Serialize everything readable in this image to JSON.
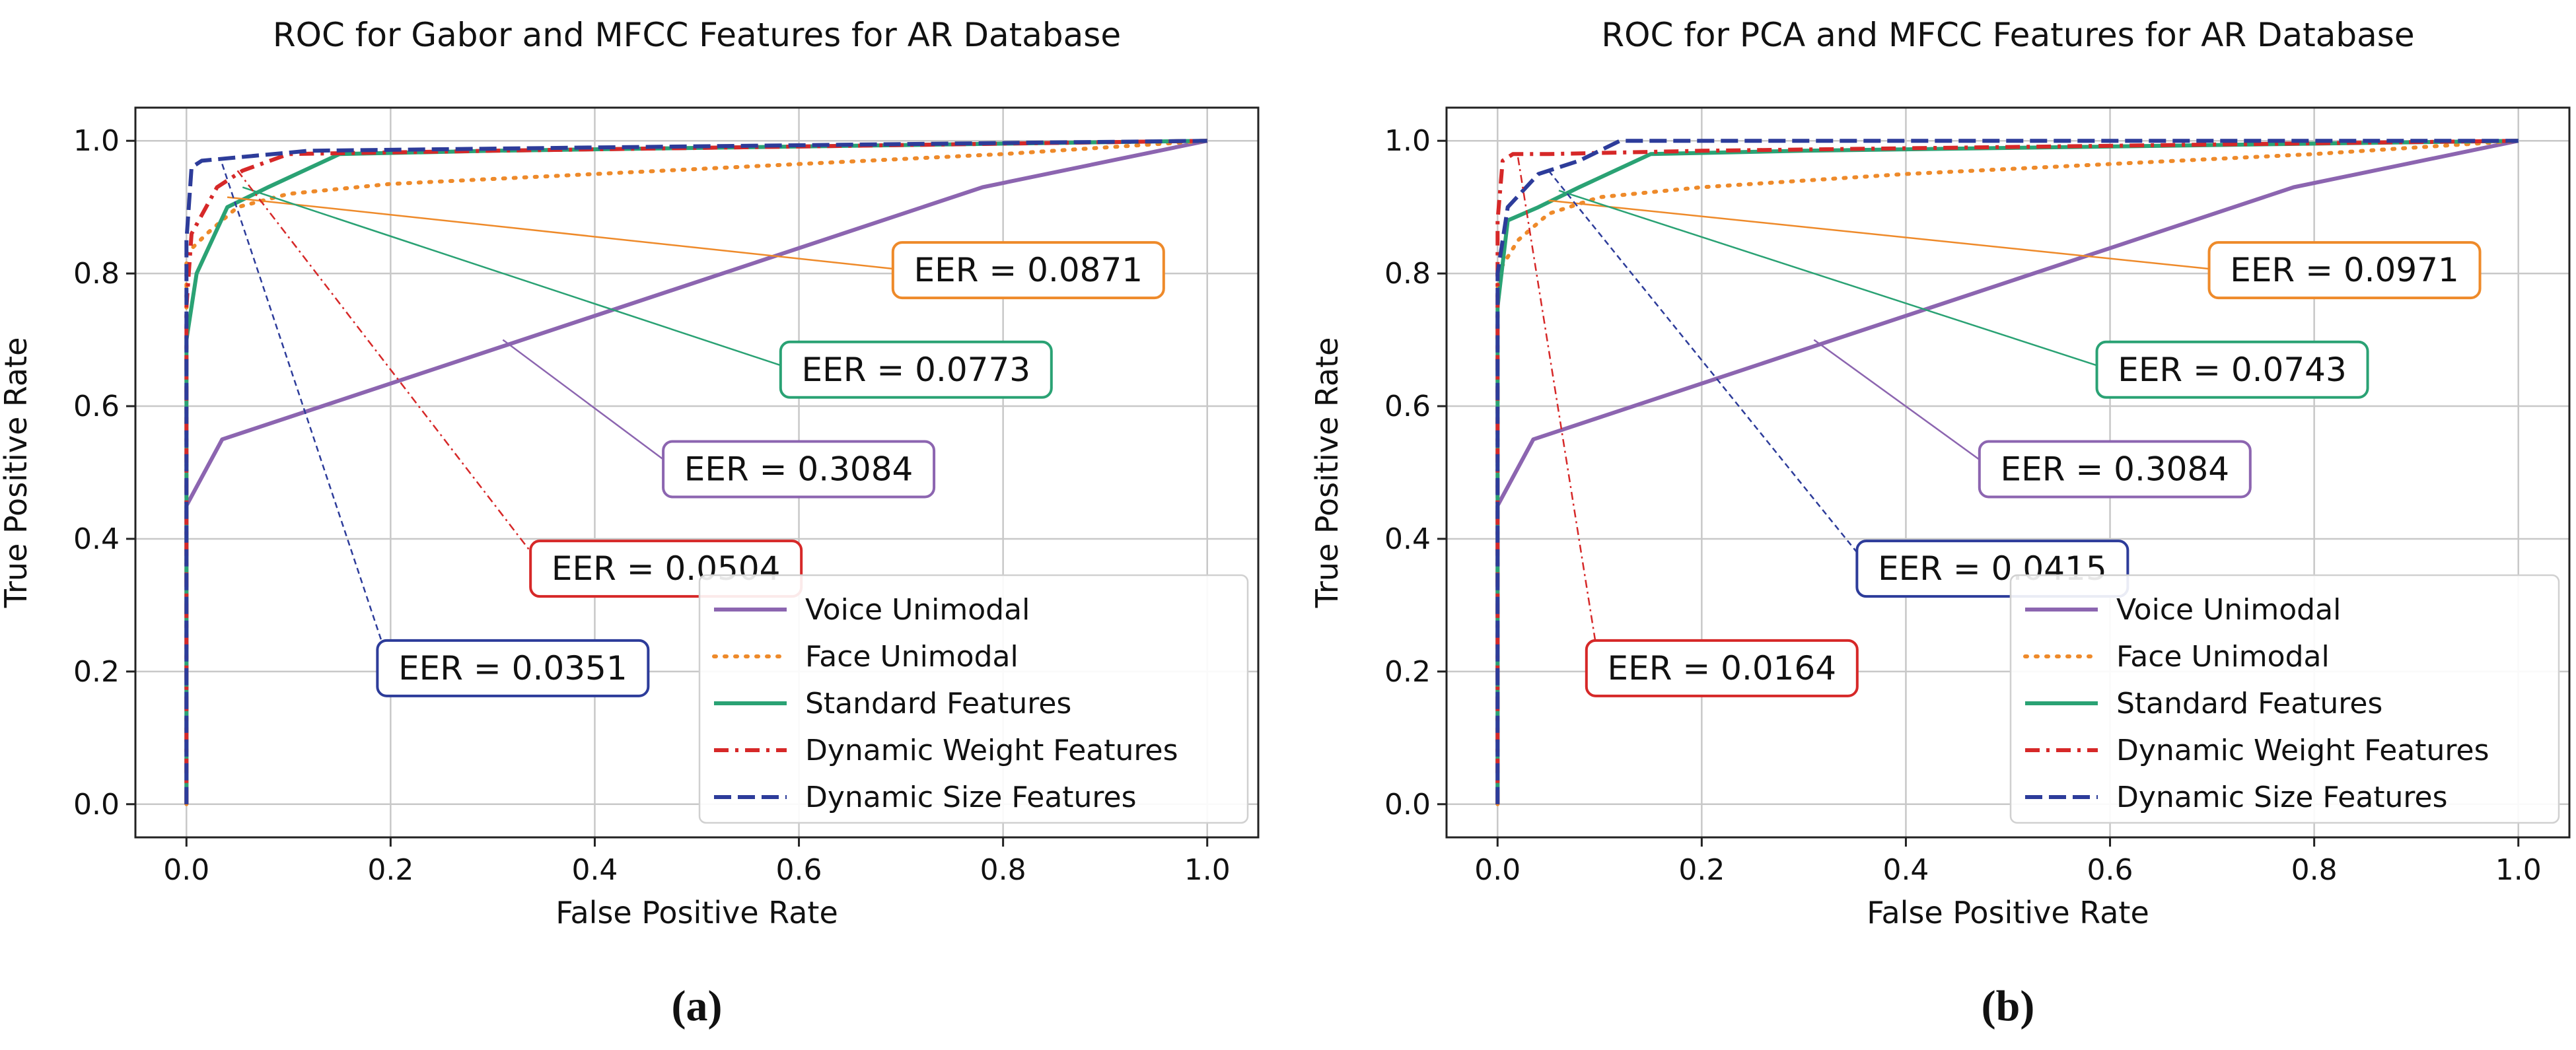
{
  "colors": {
    "voice": "#8c65b0",
    "face": "#ee8a2a",
    "standard": "#2aa274",
    "weight": "#d62828",
    "size": "#2d3c9a",
    "grid": "#c8c8c8",
    "axis": "#222222"
  },
  "chart_data": [
    {
      "type": "line",
      "panel_label": "(a)",
      "title": "ROC for Gabor and MFCC Features for AR Database",
      "xlabel": "False Positive Rate",
      "ylabel": "True Positive Rate",
      "xlim": [
        -0.05,
        1.05
      ],
      "ylim": [
        -0.05,
        1.05
      ],
      "xticks": [
        "0.0",
        "0.2",
        "0.4",
        "0.6",
        "0.8",
        "1.0"
      ],
      "yticks": [
        "0.0",
        "0.2",
        "0.4",
        "0.6",
        "0.8",
        "1.0"
      ],
      "grid": true,
      "legend_position": "lower-right",
      "series": [
        {
          "name": "Voice Unimodal",
          "key": "voice",
          "dash": "solid",
          "x": [
            0.0,
            0.0,
            0.035,
            0.78,
            1.0
          ],
          "y": [
            0.0,
            0.45,
            0.55,
            0.93,
            1.0
          ]
        },
        {
          "name": "Face Unimodal",
          "key": "face",
          "dash": "dot",
          "x": [
            0.0,
            0.0,
            0.02,
            0.05,
            0.1,
            0.2,
            0.4,
            0.6,
            0.8,
            0.95,
            1.0
          ],
          "y": [
            0.0,
            0.83,
            0.86,
            0.9,
            0.92,
            0.935,
            0.95,
            0.965,
            0.98,
            0.995,
            1.0
          ]
        },
        {
          "name": "Standard Features",
          "key": "standard",
          "dash": "solid",
          "x": [
            0.0,
            0.0,
            0.01,
            0.04,
            0.08,
            0.15,
            0.3,
            1.0
          ],
          "y": [
            0.0,
            0.7,
            0.8,
            0.9,
            0.93,
            0.98,
            0.985,
            1.0
          ]
        },
        {
          "name": "Dynamic Weight Features",
          "key": "weight",
          "dash": "dashdot",
          "x": [
            0.0,
            0.0,
            0.005,
            0.03,
            0.055,
            0.1,
            0.3,
            1.0
          ],
          "y": [
            0.0,
            0.75,
            0.86,
            0.93,
            0.955,
            0.98,
            0.985,
            1.0
          ]
        },
        {
          "name": "Dynamic Size Features",
          "key": "size",
          "dash": "dash",
          "x": [
            0.0,
            0.0,
            0.005,
            0.015,
            0.05,
            0.12,
            0.4,
            1.0
          ],
          "y": [
            0.0,
            0.85,
            0.96,
            0.97,
            0.975,
            0.985,
            0.99,
            1.0
          ]
        }
      ],
      "annotations": [
        {
          "key": "face",
          "text": "EER = 0.0871",
          "point": [
            0.04,
            0.915
          ],
          "label_at": [
            0.705,
            0.805
          ]
        },
        {
          "key": "standard",
          "text": "EER = 0.0773",
          "point": [
            0.055,
            0.93
          ],
          "label_at": [
            0.595,
            0.655
          ]
        },
        {
          "key": "voice",
          "text": "EER = 0.3084",
          "point": [
            0.31,
            0.7
          ],
          "label_at": [
            0.48,
            0.505
          ]
        },
        {
          "key": "weight",
          "text": "EER = 0.0504",
          "point": [
            0.05,
            0.955
          ],
          "label_at": [
            0.35,
            0.355
          ]
        },
        {
          "key": "size",
          "text": "EER = 0.0351",
          "point": [
            0.035,
            0.965
          ],
          "label_at": [
            0.2,
            0.205
          ]
        }
      ]
    },
    {
      "type": "line",
      "panel_label": "(b)",
      "title": "ROC for PCA and MFCC Features for AR Database",
      "xlabel": "False Positive Rate",
      "ylabel": "True Positive Rate",
      "xlim": [
        -0.05,
        1.05
      ],
      "ylim": [
        -0.05,
        1.05
      ],
      "xticks": [
        "0.0",
        "0.2",
        "0.4",
        "0.6",
        "0.8",
        "1.0"
      ],
      "yticks": [
        "0.0",
        "0.2",
        "0.4",
        "0.6",
        "0.8",
        "1.0"
      ],
      "grid": true,
      "legend_position": "lower-right",
      "series": [
        {
          "name": "Voice Unimodal",
          "key": "voice",
          "dash": "solid",
          "x": [
            0.0,
            0.0,
            0.035,
            0.78,
            1.0
          ],
          "y": [
            0.0,
            0.45,
            0.55,
            0.93,
            1.0
          ]
        },
        {
          "name": "Face Unimodal",
          "key": "face",
          "dash": "dot",
          "x": [
            0.0,
            0.0,
            0.02,
            0.05,
            0.1,
            0.2,
            0.4,
            0.6,
            0.8,
            0.95,
            1.0
          ],
          "y": [
            0.0,
            0.8,
            0.85,
            0.89,
            0.915,
            0.93,
            0.95,
            0.965,
            0.98,
            0.995,
            1.0
          ]
        },
        {
          "name": "Standard Features",
          "key": "standard",
          "dash": "solid",
          "x": [
            0.0,
            0.0,
            0.01,
            0.04,
            0.08,
            0.15,
            0.3,
            1.0
          ],
          "y": [
            0.0,
            0.75,
            0.88,
            0.9,
            0.93,
            0.98,
            0.985,
            1.0
          ]
        },
        {
          "name": "Dynamic Weight Features",
          "key": "weight",
          "dash": "dashdot",
          "x": [
            0.0,
            0.0,
            0.005,
            0.015,
            0.05,
            0.2,
            1.0
          ],
          "y": [
            0.0,
            0.88,
            0.97,
            0.98,
            0.98,
            0.985,
            1.0
          ]
        },
        {
          "name": "Dynamic Size Features",
          "key": "size",
          "dash": "dash",
          "x": [
            0.0,
            0.0,
            0.01,
            0.04,
            0.08,
            0.12,
            0.4,
            1.0
          ],
          "y": [
            0.0,
            0.8,
            0.9,
            0.95,
            0.97,
            1.0,
            1.0,
            1.0
          ]
        }
      ],
      "annotations": [
        {
          "key": "face",
          "text": "EER = 0.0971",
          "point": [
            0.05,
            0.91
          ],
          "label_at": [
            0.71,
            0.805
          ]
        },
        {
          "key": "standard",
          "text": "EER = 0.0743",
          "point": [
            0.06,
            0.925
          ],
          "label_at": [
            0.6,
            0.655
          ]
        },
        {
          "key": "voice",
          "text": "EER = 0.3084",
          "point": [
            0.31,
            0.7
          ],
          "label_at": [
            0.485,
            0.505
          ]
        },
        {
          "key": "size",
          "text": "EER = 0.0415",
          "point": [
            0.05,
            0.955
          ],
          "label_at": [
            0.365,
            0.355
          ]
        },
        {
          "key": "weight",
          "text": "EER = 0.0164",
          "point": [
            0.02,
            0.975
          ],
          "label_at": [
            0.1,
            0.205
          ]
        }
      ]
    }
  ]
}
